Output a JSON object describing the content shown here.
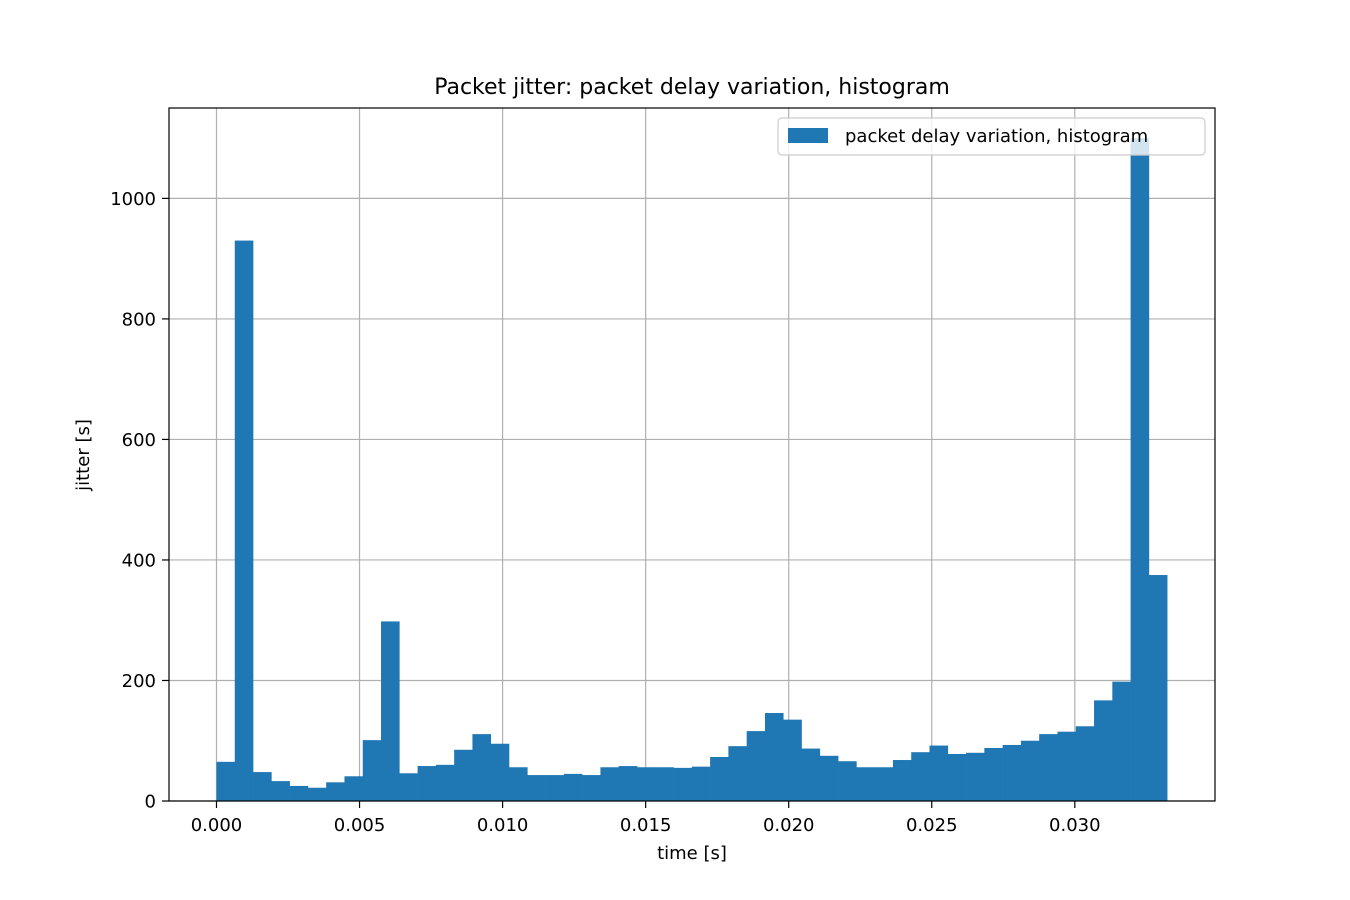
{
  "chart_data": {
    "type": "bar",
    "title": "Packet jitter: packet delay variation, histogram",
    "xlabel": "time [s]",
    "ylabel": "jitter [s]",
    "xlim": [
      -0.00166,
      0.0349
    ],
    "ylim": [
      0,
      1150
    ],
    "grid": true,
    "legend_position": "top-right",
    "bar_color": "#1f77b4",
    "bin_start": 0.0,
    "bin_width": 0.000639,
    "series": [
      {
        "name": "packet delay variation, histogram",
        "values": [
          65,
          930,
          48,
          33,
          25,
          22,
          31,
          41,
          101,
          298,
          46,
          58,
          60,
          85,
          111,
          95,
          56,
          43,
          43,
          45,
          43,
          56,
          58,
          56,
          56,
          55,
          57,
          73,
          91,
          116,
          146,
          135,
          87,
          75,
          66,
          56,
          56,
          68,
          81,
          92,
          78,
          80,
          88,
          93,
          100,
          111,
          115,
          124,
          167,
          198,
          1100,
          375
        ]
      }
    ],
    "xticks": [
      {
        "value": 0.0,
        "label": "0.000"
      },
      {
        "value": 0.005,
        "label": "0.005"
      },
      {
        "value": 0.01,
        "label": "0.010"
      },
      {
        "value": 0.015,
        "label": "0.015"
      },
      {
        "value": 0.02,
        "label": "0.020"
      },
      {
        "value": 0.025,
        "label": "0.025"
      },
      {
        "value": 0.03,
        "label": "0.030"
      }
    ],
    "yticks": [
      {
        "value": 0,
        "label": "0"
      },
      {
        "value": 200,
        "label": "200"
      },
      {
        "value": 400,
        "label": "400"
      },
      {
        "value": 600,
        "label": "600"
      },
      {
        "value": 800,
        "label": "800"
      },
      {
        "value": 1000,
        "label": "1000"
      }
    ]
  }
}
